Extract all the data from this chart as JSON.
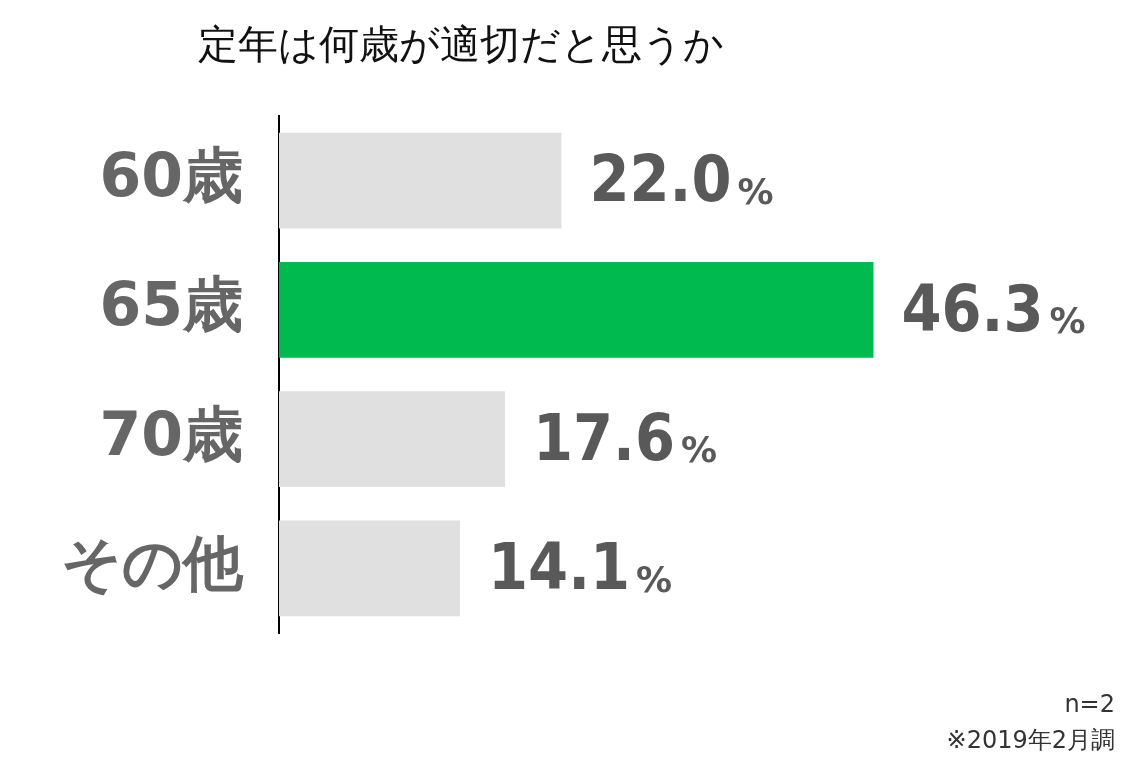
{
  "chart_data": {
    "type": "bar",
    "orientation": "horizontal",
    "title": "定年は何歳が適切だと思うか",
    "categories": [
      "60歳",
      "65歳",
      "70歳",
      "その他"
    ],
    "values": [
      22.0,
      46.3,
      17.6,
      14.1
    ],
    "colors": [
      "#e0e0e0",
      "#00b94f",
      "#e0e0e0",
      "#e0e0e0"
    ],
    "value_labels": [
      "22.0%",
      "46.3%",
      "17.6%",
      "14.1%"
    ],
    "legend": false,
    "tick_labels": "y",
    "annotations": [
      "n=2",
      "※2019年2月調"
    ]
  }
}
